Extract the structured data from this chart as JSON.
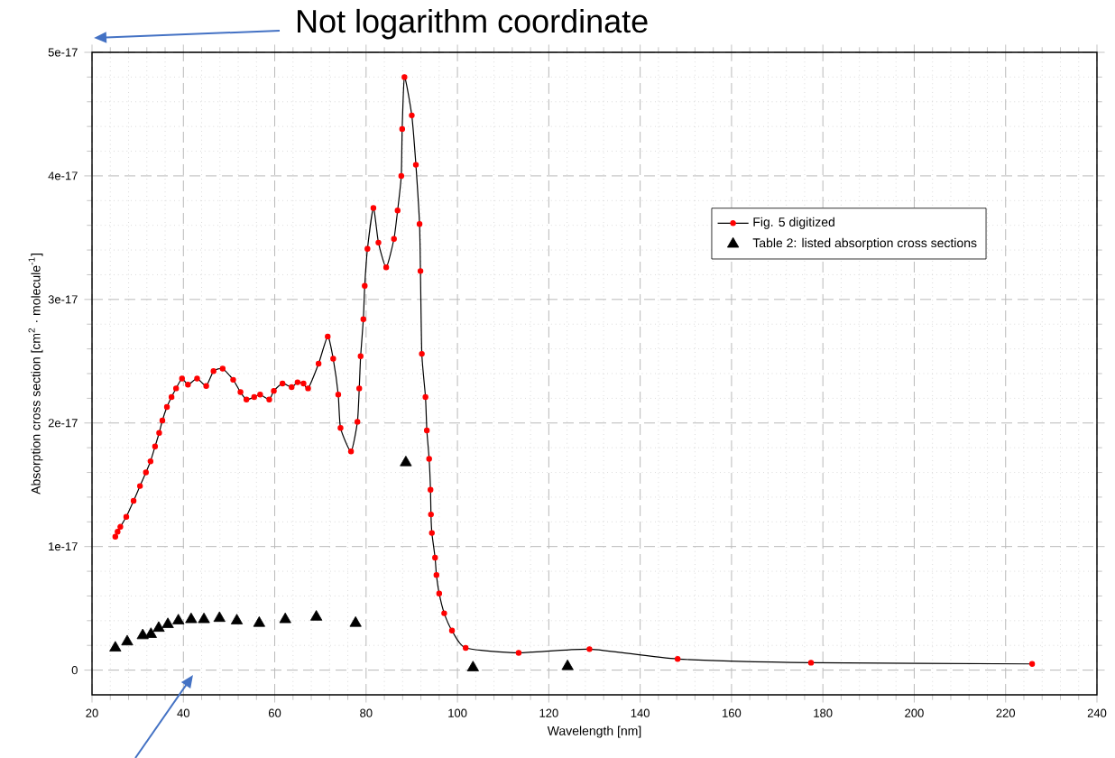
{
  "chart_data": {
    "type": "line",
    "xlabel": "Wavelength [nm]",
    "ylabel": "Absorption cross section [cm$^{2}$ · molecule$^{-1}$]",
    "annotations": [
      "Not logarithm coordinate"
    ],
    "xlim": [
      20,
      240
    ],
    "ylim": [
      -2e-18,
      5e-17
    ],
    "xticks": [
      20,
      40,
      60,
      80,
      100,
      120,
      140,
      160,
      180,
      200,
      220,
      240
    ],
    "yticks": [
      0,
      {
        "value": 1e-17,
        "label": "1e-17"
      },
      {
        "value": 2e-17,
        "label": "2e-17"
      },
      {
        "value": 3e-17,
        "label": "3e-17"
      },
      {
        "value": 4e-17,
        "label": "4e-17"
      },
      {
        "value": 5e-17,
        "label": "5e-17"
      }
    ],
    "grid": true,
    "legend": "top right",
    "series": [
      {
        "name": "Fig. 5 digitized",
        "marker": "circle",
        "color": "#ff0000",
        "x": [
          25.1,
          25.6,
          26.2,
          27.5,
          29.1,
          30.5,
          31.8,
          32.8,
          33.8,
          34.7,
          35.4,
          36.4,
          37.4,
          38.4,
          39.7,
          41.0,
          43.0,
          45.0,
          46.6,
          48.6,
          50.9,
          52.5,
          53.8,
          55.5,
          56.8,
          58.8,
          59.8,
          61.7,
          63.7,
          65.0,
          66.3,
          67.3,
          69.6,
          71.6,
          72.8,
          73.9,
          74.4,
          76.7,
          78.1,
          78.5,
          78.8,
          79.4,
          79.7,
          80.3,
          81.6,
          82.7,
          84.4,
          86.1,
          86.9,
          87.7,
          87.9,
          88.4,
          90.0,
          90.9,
          91.7,
          91.9,
          92.2,
          93.0,
          93.3,
          93.8,
          94.1,
          94.2,
          94.4,
          95.1,
          95.4,
          96.0,
          97.1,
          98.8,
          101.8,
          113.4,
          128.9,
          148.2,
          177.4,
          225.8
        ],
        "values": [
          1.08e-17,
          1.12e-17,
          1.16e-17,
          1.24e-17,
          1.37e-17,
          1.49e-17,
          1.6e-17,
          1.69e-17,
          1.81e-17,
          1.92e-17,
          2.02e-17,
          2.13e-17,
          2.21e-17,
          2.28e-17,
          2.36e-17,
          2.31e-17,
          2.36e-17,
          2.3e-17,
          2.42e-17,
          2.44e-17,
          2.35e-17,
          2.25e-17,
          2.19e-17,
          2.21e-17,
          2.23e-17,
          2.19e-17,
          2.26e-17,
          2.32e-17,
          2.29e-17,
          2.33e-17,
          2.32e-17,
          2.28e-17,
          2.48e-17,
          2.7e-17,
          2.52e-17,
          2.23e-17,
          1.96e-17,
          1.77e-17,
          2.01e-17,
          2.28e-17,
          2.54e-17,
          2.84e-17,
          3.11e-17,
          3.41e-17,
          3.74e-17,
          3.46e-17,
          3.26e-17,
          3.49e-17,
          3.72e-17,
          4e-17,
          4.38e-17,
          4.8e-17,
          4.49e-17,
          4.09e-17,
          3.61e-17,
          3.23e-17,
          2.56e-17,
          2.21e-17,
          1.94e-17,
          1.71e-17,
          1.46e-17,
          1.26e-17,
          1.11e-17,
          9.1e-18,
          7.7e-18,
          6.2e-18,
          4.6e-18,
          3.2e-18,
          1.8e-18,
          1.4e-18,
          1.7e-18,
          9e-19,
          6e-19,
          5e-19
        ]
      },
      {
        "name": "Table 2: listed absorption cross sections",
        "type": "scatter",
        "marker": "triangle",
        "color": "#000000",
        "x": [
          25.1,
          27.7,
          31.1,
          32.9,
          34.6,
          36.6,
          38.9,
          41.7,
          44.5,
          47.9,
          51.7,
          56.6,
          62.3,
          69.1,
          77.7,
          88.7,
          103.4,
          124.1
        ],
        "values": [
          1.8e-18,
          2.3e-18,
          2.8e-18,
          2.9e-18,
          3.4e-18,
          3.7e-18,
          4e-18,
          4.1e-18,
          4.1e-18,
          4.2e-18,
          4e-18,
          3.8e-18,
          4.1e-18,
          4.3e-18,
          3.8e-18,
          1.68e-17,
          2e-19,
          3e-19
        ]
      }
    ]
  }
}
